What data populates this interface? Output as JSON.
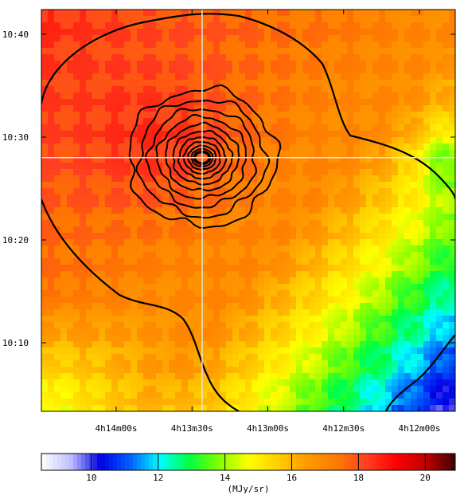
{
  "chart_data": {
    "type": "heatmap",
    "title": "",
    "xlabel": "",
    "ylabel": "",
    "x_ticks": [
      "4h14m00s",
      "4h13m30s",
      "4h13m00s",
      "4h12m30s",
      "4h12m00s"
    ],
    "y_ticks": [
      "10:40",
      "10:30",
      "10:20",
      "10:10"
    ],
    "x_range": [
      "4h14m00s",
      "4h12m00s"
    ],
    "y_range": [
      "10:05",
      "10:41"
    ],
    "crosshair": {
      "ra": "4h13m26s",
      "dec": "10:28"
    },
    "colorbar": {
      "label": "(MJy/sr)",
      "range": [
        8.5,
        20.9
      ],
      "ticks": [
        10,
        12,
        14,
        16,
        18,
        20
      ],
      "colormap": [
        "#ffffff",
        "#bfbfff",
        "#0000e6",
        "#0060ff",
        "#00ffff",
        "#00ff40",
        "#80ff00",
        "#ffff00",
        "#ffd000",
        "#ff9900",
        "#ff7a00",
        "#ff4020",
        "#ff0000",
        "#c00000",
        "#400000"
      ]
    },
    "intensity_field": {
      "description_units": "MJy/sr",
      "background_gradient": {
        "min": 10.0,
        "max": 17.8
      },
      "peak_region": {
        "ra": "4h13m40s",
        "dec": "10:29",
        "value": 17.8
      },
      "top_left_value": 18.5,
      "bottom_right_value": 9.5
    },
    "contours": {
      "center": {
        "ra": "4h13m26s",
        "dec": "10:28"
      },
      "levels": 12
    }
  }
}
